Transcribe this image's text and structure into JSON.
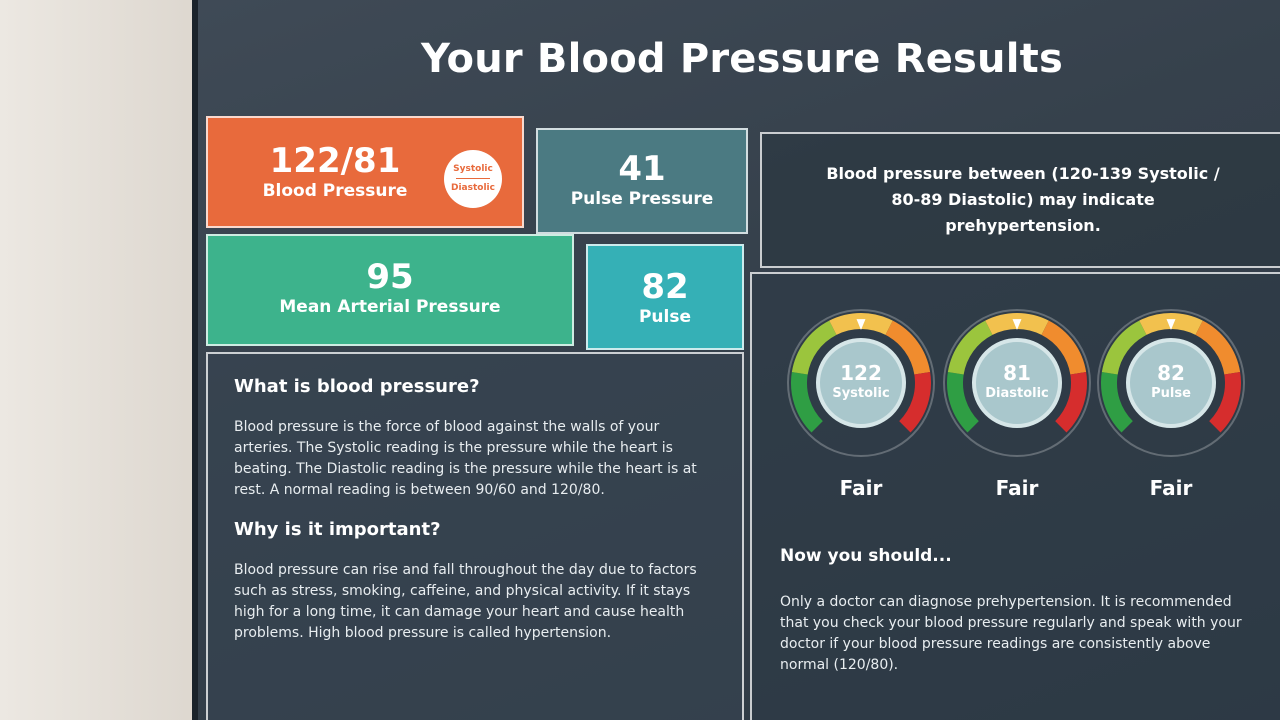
{
  "title": "Your Blood Pressure Results",
  "cards": {
    "blood_pressure": {
      "value": "122/81",
      "label": "Blood Pressure",
      "badge_top": "Systolic",
      "badge_bottom": "Diastolic",
      "color": "#e86a3c"
    },
    "pulse_pressure": {
      "value": "41",
      "label": "Pulse Pressure",
      "color": "#4b7a82"
    },
    "mean_arterial": {
      "value": "95",
      "label": "Mean Arterial Pressure",
      "color": "#3db38c"
    },
    "pulse": {
      "value": "82",
      "label": "Pulse",
      "color": "#35b0b6"
    }
  },
  "notice": "Blood pressure between (120-139 Systolic / 80-89 Diastolic) may indicate prehypertension.",
  "info": {
    "q1": "What is blood pressure?",
    "a1": "Blood pressure is the force of blood against the walls of your arteries. The Systolic reading is the pressure while the heart is beating. The Diastolic reading is the pressure while the heart is at rest. A normal reading is between 90/60 and 120/80.",
    "q2": "Why is it important?",
    "a2": "Blood pressure can rise and fall throughout the day due to factors such as stress, smoking, caffeine, and physical activity. If it stays high for a long time, it can damage your heart and cause health problems. High blood pressure is called hypertension."
  },
  "gauges": [
    {
      "value": "122",
      "name": "Systolic",
      "rating": "Fair",
      "level": 0.5
    },
    {
      "value": "81",
      "name": "Diastolic",
      "rating": "Fair",
      "level": 0.5
    },
    {
      "value": "82",
      "name": "Pulse",
      "rating": "Fair",
      "level": 0.5
    }
  ],
  "next": {
    "heading": "Now you should...",
    "text": "Only a doctor can diagnose prehypertension. It is recommended that you check your blood pressure regularly and speak with your doctor if your blood pressure readings are consistently above normal (120/80)."
  },
  "gauge_colors": [
    "#2f9e44",
    "#9bc53d",
    "#f2c14e",
    "#f08c2e",
    "#d62d2d"
  ]
}
